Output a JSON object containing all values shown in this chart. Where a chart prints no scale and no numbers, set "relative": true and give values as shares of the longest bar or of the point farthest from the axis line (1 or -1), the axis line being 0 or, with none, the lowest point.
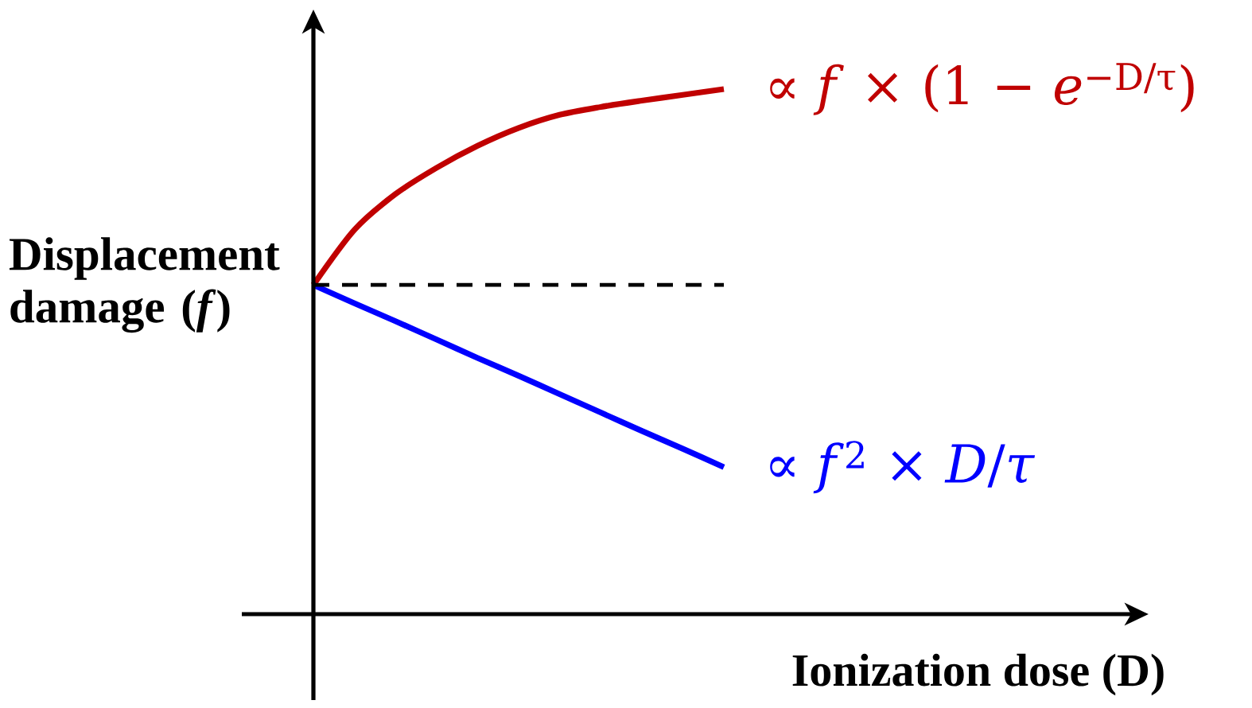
{
  "chart_data": {
    "type": "line",
    "relative": true,
    "xlabel": "Ionization dose (D)",
    "categories": [
      null,
      null,
      null,
      null,
      null,
      null,
      null,
      null,
      null,
      null,
      null
    ],
    "series": [
      {
        "name": "∝ *f* × (1 − *e*$^{−D/τ}$)",
        "color": "#c00000",
        "values": [
          0.627,
          0.732,
          0.8,
          0.85,
          0.892,
          0.926,
          0.951,
          0.966,
          0.978,
          0.989,
          1
        ]
      },
      {
        "name": "∝ *f*$^{2}$ × *D*/*τ*",
        "color": "#0000ff",
        "values": [
          0.627,
          0.592,
          0.558,
          0.523,
          0.488,
          0.454,
          0.419,
          0.384,
          0.349,
          0.315,
          0.28
        ]
      }
    ],
    "ref_lines": [
      {
        "axis": "y",
        "value": 0.627,
        "label": "Displacement damage (*f*)",
        "color": "#000000",
        "line_style": "dashed"
      }
    ]
  }
}
